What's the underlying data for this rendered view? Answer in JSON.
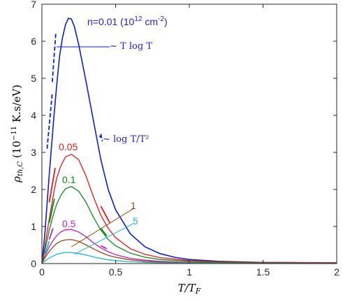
{
  "chart_data": {
    "type": "line",
    "xlabel": "T/T_F",
    "ylabel": "ρ_th,C (10^−11 K.s/eV)",
    "xlim": [
      0,
      2
    ],
    "ylim": [
      0,
      7
    ],
    "xticks": [
      "0",
      "0.5",
      "1",
      "1.5",
      "2"
    ],
    "yticks": [
      "0",
      "1",
      "2",
      "3",
      "4",
      "5",
      "6",
      "7"
    ],
    "grid": false,
    "series": [
      {
        "name": "n=0.01 (10^12 cm^-2)",
        "color": "#0d1fd0",
        "x": [
          0,
          0.02,
          0.05,
          0.08,
          0.1,
          0.12,
          0.14,
          0.16,
          0.18,
          0.2,
          0.22,
          0.25,
          0.3,
          0.35,
          0.4,
          0.45,
          0.5,
          0.6,
          0.7,
          0.8,
          0.9,
          1.0,
          1.2,
          1.5,
          2.0
        ],
        "values": [
          0,
          0.8,
          2.4,
          3.9,
          4.8,
          5.6,
          6.1,
          6.45,
          6.62,
          6.6,
          6.4,
          5.9,
          4.9,
          3.85,
          2.8,
          2.0,
          1.45,
          0.8,
          0.45,
          0.27,
          0.17,
          0.11,
          0.06,
          0.03,
          0.02
        ]
      },
      {
        "name": "0.05",
        "color": "#e8161a",
        "x": [
          0,
          0.02,
          0.05,
          0.08,
          0.1,
          0.13,
          0.16,
          0.2,
          0.25,
          0.3,
          0.35,
          0.4,
          0.45,
          0.5,
          0.6,
          0.7,
          0.8,
          1.0,
          1.2,
          1.5,
          2.0
        ],
        "values": [
          0,
          0.45,
          1.2,
          1.9,
          2.3,
          2.65,
          2.88,
          2.95,
          2.8,
          2.35,
          1.8,
          1.3,
          0.95,
          0.7,
          0.4,
          0.25,
          0.16,
          0.08,
          0.05,
          0.03,
          0.02
        ]
      },
      {
        "name": "0.1",
        "color": "#0a8a16",
        "x": [
          0,
          0.02,
          0.05,
          0.08,
          0.1,
          0.13,
          0.16,
          0.2,
          0.25,
          0.3,
          0.35,
          0.4,
          0.45,
          0.5,
          0.6,
          0.7,
          0.8,
          1.0,
          1.2,
          1.5,
          2.0
        ],
        "values": [
          0,
          0.35,
          0.9,
          1.35,
          1.6,
          1.85,
          2.02,
          2.08,
          1.95,
          1.65,
          1.25,
          0.9,
          0.65,
          0.48,
          0.28,
          0.17,
          0.11,
          0.06,
          0.04,
          0.02,
          0.01
        ]
      },
      {
        "name": "0.5",
        "color": "#c21fb5",
        "x": [
          0,
          0.02,
          0.05,
          0.08,
          0.1,
          0.13,
          0.16,
          0.2,
          0.25,
          0.3,
          0.35,
          0.4,
          0.45,
          0.5,
          0.6,
          0.7,
          0.8,
          1.0,
          1.5,
          2.0
        ],
        "values": [
          0,
          0.2,
          0.45,
          0.65,
          0.75,
          0.86,
          0.91,
          0.92,
          0.85,
          0.72,
          0.56,
          0.42,
          0.32,
          0.24,
          0.14,
          0.09,
          0.06,
          0.03,
          0.01,
          0.01
        ]
      },
      {
        "name": "1",
        "color": "#9a4a14",
        "x": [
          0,
          0.02,
          0.05,
          0.08,
          0.1,
          0.13,
          0.16,
          0.2,
          0.25,
          0.3,
          0.35,
          0.4,
          0.45,
          0.5,
          0.6,
          0.7,
          0.8,
          1.0,
          1.5,
          2.0
        ],
        "values": [
          0,
          0.15,
          0.33,
          0.47,
          0.54,
          0.61,
          0.64,
          0.65,
          0.6,
          0.5,
          0.4,
          0.3,
          0.22,
          0.17,
          0.1,
          0.06,
          0.04,
          0.02,
          0.01,
          0.01
        ]
      },
      {
        "name": "5",
        "color": "#1ab6d6",
        "x": [
          0,
          0.02,
          0.05,
          0.08,
          0.1,
          0.13,
          0.16,
          0.2,
          0.25,
          0.3,
          0.35,
          0.4,
          0.45,
          0.5,
          0.6,
          0.7,
          0.8,
          1.0,
          1.5,
          2.0
        ],
        "values": [
          0,
          0.07,
          0.15,
          0.21,
          0.25,
          0.28,
          0.3,
          0.3,
          0.27,
          0.23,
          0.18,
          0.14,
          0.1,
          0.08,
          0.05,
          0.03,
          0.02,
          0.01,
          0.0,
          0.0
        ]
      }
    ],
    "asymptotes": [
      {
        "label": "~ T log T",
        "color": "#0d1fd0",
        "style": "dashed",
        "segments": [
          {
            "x": [
              0.07,
              0.095
            ],
            "values": [
              4.9,
              6.25
            ]
          },
          {
            "x": [
              0.035,
              0.07
            ],
            "values": [
              3.1,
              4.6
            ]
          }
        ]
      },
      {
        "label": "~ log T/T²",
        "color": "#0d1fd0",
        "style": "dashed",
        "segments": [
          {
            "x": [
              0.4,
              0.41
            ],
            "values": [
              3.5,
              3.3
            ]
          }
        ]
      }
    ],
    "low_t_fragments": [
      {
        "color": "#e8161a",
        "x": [
          0.05,
          0.09
        ],
        "values": [
          1.65,
          2.58
        ]
      },
      {
        "color": "#0a8a16",
        "x": [
          0.05,
          0.085
        ],
        "values": [
          1.1,
          1.75
        ]
      },
      {
        "color": "#c21fb5",
        "x": [
          0.05,
          0.075
        ],
        "values": [
          0.65,
          0.95
        ]
      },
      {
        "color": "#1ab6d6",
        "x": [
          0.02,
          0.05
        ],
        "values": [
          0.25,
          0.6
        ]
      }
    ],
    "high_t_fragments": [
      {
        "color": "#e8161a",
        "x": [
          0.4,
          0.46
        ],
        "values": [
          1.55,
          1.1
        ]
      },
      {
        "color": "#0a8a16",
        "x": [
          0.4,
          0.44
        ],
        "values": [
          0.95,
          0.75
        ]
      },
      {
        "color": "#c21fb5",
        "x": [
          0.4,
          0.44
        ],
        "values": [
          0.48,
          0.4
        ]
      },
      {
        "color": "#0d1fd0",
        "x": [
          0.39,
          0.4
        ],
        "values": [
          3.45,
          3.4
        ]
      }
    ],
    "annotations": [
      {
        "text_parts": [
          "n=0.01 (10",
          "12",
          " cm",
          "-2",
          ")"
        ],
        "color": "#1f1fd1"
      },
      {
        "text": "0.05",
        "color": "#e8161a"
      },
      {
        "text": "0.1",
        "color": "#0a8a16"
      },
      {
        "text": "0.5",
        "color": "#c21fb5"
      },
      {
        "text": "1",
        "color": "#9a4a14"
      },
      {
        "text": "5",
        "color": "#1ab6d6"
      }
    ],
    "leaders": [
      {
        "color": "#9a4a14",
        "x": [
          0.2,
          0.62
        ],
        "values": [
          0.45,
          1.48
        ]
      },
      {
        "color": "#1ab6d6",
        "x": [
          0.22,
          0.62
        ],
        "values": [
          0.25,
          1.08
        ]
      },
      {
        "color": "#0d1fd0",
        "x": [
          0.1,
          0.46
        ],
        "values": [
          5.85,
          5.85
        ]
      }
    ]
  }
}
